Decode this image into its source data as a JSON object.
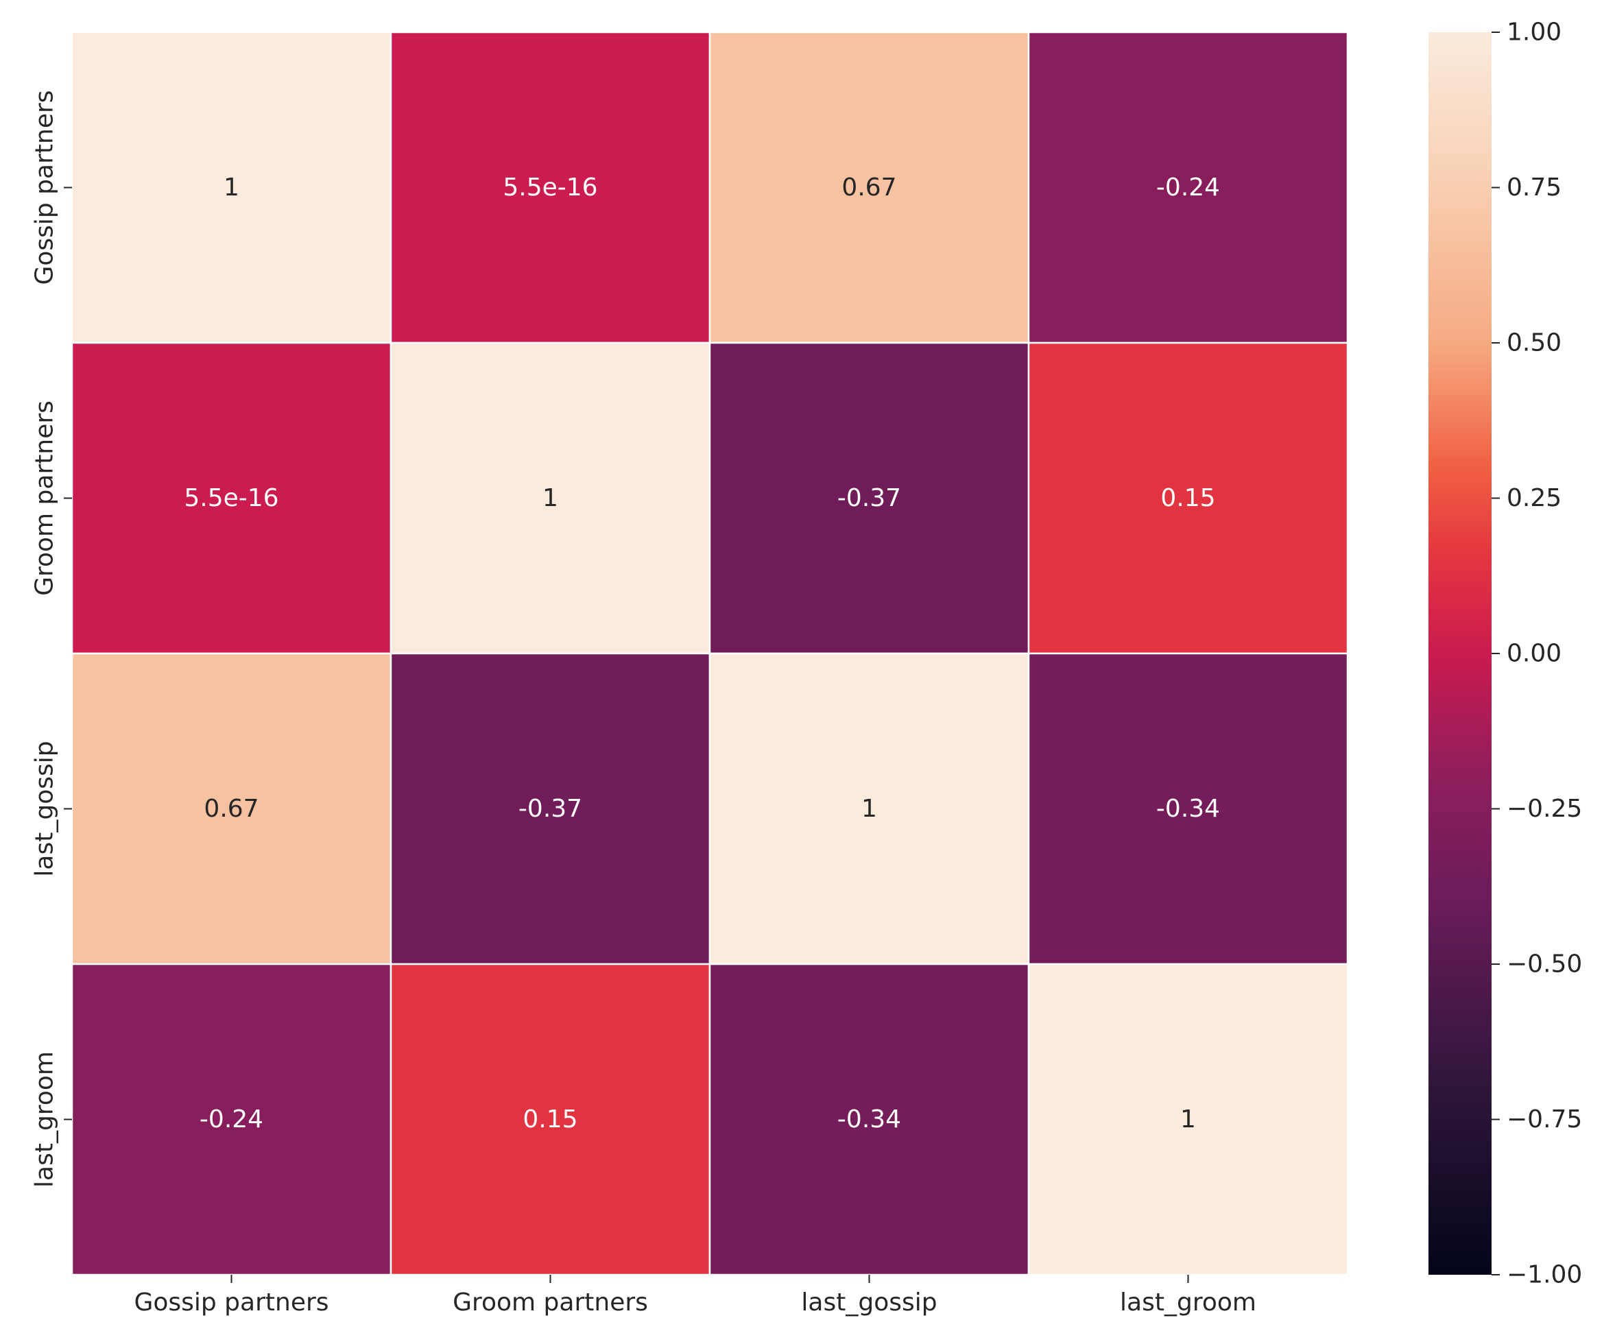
{
  "chart_data": {
    "type": "heatmap",
    "title": "",
    "xlabel": "",
    "ylabel": "",
    "x_categories": [
      "Gossip partners",
      "Groom partners",
      "last_gossip",
      "last_groom"
    ],
    "y_categories": [
      "Gossip partners",
      "Groom partners",
      "last_gossip",
      "last_groom"
    ],
    "values": [
      [
        1,
        5.5e-16,
        0.67,
        -0.24
      ],
      [
        5.5e-16,
        1,
        -0.37,
        0.15
      ],
      [
        0.67,
        -0.37,
        1,
        -0.34
      ],
      [
        -0.24,
        0.15,
        -0.34,
        1
      ]
    ],
    "annotations": [
      [
        "1",
        "5.5e-16",
        "0.67",
        "-0.24"
      ],
      [
        "5.5e-16",
        "1",
        "-0.37",
        "0.15"
      ],
      [
        "0.67",
        "-0.37",
        "1",
        "-0.34"
      ],
      [
        "-0.24",
        "0.15",
        "-0.34",
        "1"
      ]
    ],
    "colorbar": {
      "vmin": -1,
      "vmax": 1,
      "ticks": [
        1.0,
        0.75,
        0.5,
        0.25,
        0.0,
        -0.25,
        -0.5,
        -0.75,
        -1.0
      ],
      "tick_labels": [
        "1.00",
        "0.75",
        "0.50",
        "0.25",
        "0.00",
        "−0.25",
        "−0.50",
        "−0.75",
        "−1.00"
      ]
    },
    "colormap": "rocket",
    "grid": false
  }
}
